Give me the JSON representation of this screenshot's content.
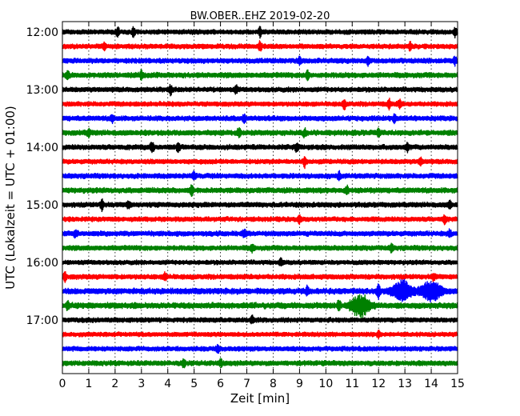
{
  "chart_data": {
    "type": "line",
    "title": "BW.OBER..EHZ 2019-02-20",
    "xlabel": "Zeit  [min]",
    "ylabel": "UTC (Lokalzeit = UTC + 01:00)",
    "xlim": [
      0,
      15
    ],
    "x_ticks": [
      "0",
      "1",
      "2",
      "3",
      "4",
      "5",
      "6",
      "7",
      "8",
      "9",
      "10",
      "11",
      "12",
      "13",
      "14",
      "15"
    ],
    "y_ticks": [
      "12:00",
      "13:00",
      "14:00",
      "15:00",
      "16:00",
      "17:00"
    ],
    "grid": "vertical dotted",
    "colors": [
      "#000000",
      "#ff0000",
      "#0000ff",
      "#008000"
    ],
    "trace_interval_minutes": 15,
    "traces": [
      {
        "start": "12:00",
        "color": "#000000",
        "amp": 0.9,
        "events": [
          [
            2.1,
            1.6
          ],
          [
            2.7,
            1.6
          ],
          [
            7.5,
            1.6
          ],
          [
            14.9,
            1.5
          ]
        ]
      },
      {
        "start": "12:15",
        "color": "#ff0000",
        "amp": 0.9,
        "events": [
          [
            1.6,
            1.6
          ],
          [
            7.5,
            1.6
          ],
          [
            13.2,
            1.4
          ]
        ]
      },
      {
        "start": "12:30",
        "color": "#0000ff",
        "amp": 0.95,
        "events": [
          [
            9.0,
            1.5
          ],
          [
            11.6,
            1.5
          ],
          [
            14.9,
            1.4
          ]
        ]
      },
      {
        "start": "12:45",
        "color": "#008000",
        "amp": 1.0,
        "events": [
          [
            0.2,
            1.5
          ],
          [
            3.0,
            1.5
          ],
          [
            9.3,
            1.6
          ]
        ]
      },
      {
        "start": "13:00",
        "color": "#000000",
        "amp": 0.9,
        "events": [
          [
            4.1,
            1.7
          ],
          [
            6.6,
            1.4
          ]
        ]
      },
      {
        "start": "13:15",
        "color": "#ff0000",
        "amp": 0.9,
        "events": [
          [
            10.7,
            1.7
          ],
          [
            12.4,
            1.7
          ],
          [
            12.8,
            1.5
          ]
        ]
      },
      {
        "start": "13:30",
        "color": "#0000ff",
        "amp": 0.95,
        "events": [
          [
            1.9,
            1.4
          ],
          [
            6.9,
            1.5
          ],
          [
            12.6,
            1.4
          ]
        ]
      },
      {
        "start": "13:45",
        "color": "#008000",
        "amp": 1.0,
        "events": [
          [
            1.0,
            1.4
          ],
          [
            6.7,
            1.5
          ],
          [
            9.2,
            1.4
          ],
          [
            12.0,
            1.4
          ]
        ]
      },
      {
        "start": "14:00",
        "color": "#000000",
        "amp": 0.95,
        "events": [
          [
            3.4,
            2.2
          ],
          [
            4.4,
            1.6
          ],
          [
            8.9,
            1.5
          ],
          [
            13.1,
            1.5
          ]
        ]
      },
      {
        "start": "14:15",
        "color": "#ff0000",
        "amp": 0.9,
        "events": [
          [
            9.2,
            2.0
          ],
          [
            13.6,
            1.4
          ]
        ]
      },
      {
        "start": "14:30",
        "color": "#0000ff",
        "amp": 0.95,
        "events": [
          [
            5.0,
            1.4
          ],
          [
            10.5,
            1.4
          ]
        ]
      },
      {
        "start": "14:45",
        "color": "#008000",
        "amp": 1.0,
        "events": [
          [
            4.9,
            2.0
          ],
          [
            10.8,
            1.5
          ]
        ]
      },
      {
        "start": "15:00",
        "color": "#000000",
        "amp": 0.95,
        "events": [
          [
            1.5,
            2.0
          ],
          [
            2.5,
            1.5
          ],
          [
            14.7,
            1.4
          ]
        ]
      },
      {
        "start": "15:15",
        "color": "#ff0000",
        "amp": 0.9,
        "events": [
          [
            9.0,
            1.5
          ],
          [
            14.5,
            1.8
          ]
        ]
      },
      {
        "start": "15:30",
        "color": "#0000ff",
        "amp": 0.95,
        "events": [
          [
            0.5,
            1.4
          ],
          [
            6.9,
            1.4
          ],
          [
            14.7,
            1.4
          ]
        ]
      },
      {
        "start": "15:45",
        "color": "#008000",
        "amp": 0.95,
        "events": [
          [
            7.2,
            1.4
          ],
          [
            12.5,
            1.4
          ]
        ]
      },
      {
        "start": "16:00",
        "color": "#000000",
        "amp": 0.85,
        "events": [
          [
            8.3,
            1.4
          ]
        ]
      },
      {
        "start": "16:15",
        "color": "#ff0000",
        "amp": 0.95,
        "events": [
          [
            0.1,
            1.6
          ],
          [
            3.9,
            1.4
          ],
          [
            14.1,
            1.4
          ]
        ]
      },
      {
        "start": "16:30",
        "color": "#0000ff",
        "amp": 1.1,
        "events": [
          [
            9.3,
            1.8
          ],
          [
            12.9,
            5.2
          ],
          [
            14.0,
            4.8
          ],
          [
            12.0,
            2.5
          ]
        ]
      },
      {
        "start": "16:45",
        "color": "#008000",
        "amp": 1.1,
        "events": [
          [
            11.3,
            5.0
          ],
          [
            10.5,
            2.2
          ],
          [
            0.2,
            1.6
          ]
        ]
      },
      {
        "start": "17:00",
        "color": "#000000",
        "amp": 0.9,
        "events": [
          [
            7.2,
            1.4
          ]
        ]
      },
      {
        "start": "17:15",
        "color": "#ff0000",
        "amp": 0.85,
        "events": [
          [
            12.0,
            1.3
          ]
        ]
      },
      {
        "start": "17:30",
        "color": "#0000ff",
        "amp": 0.9,
        "events": [
          [
            5.9,
            1.6
          ]
        ]
      },
      {
        "start": "17:45",
        "color": "#008000",
        "amp": 0.95,
        "events": [
          [
            4.6,
            1.4
          ],
          [
            6.0,
            1.4
          ]
        ]
      }
    ]
  }
}
